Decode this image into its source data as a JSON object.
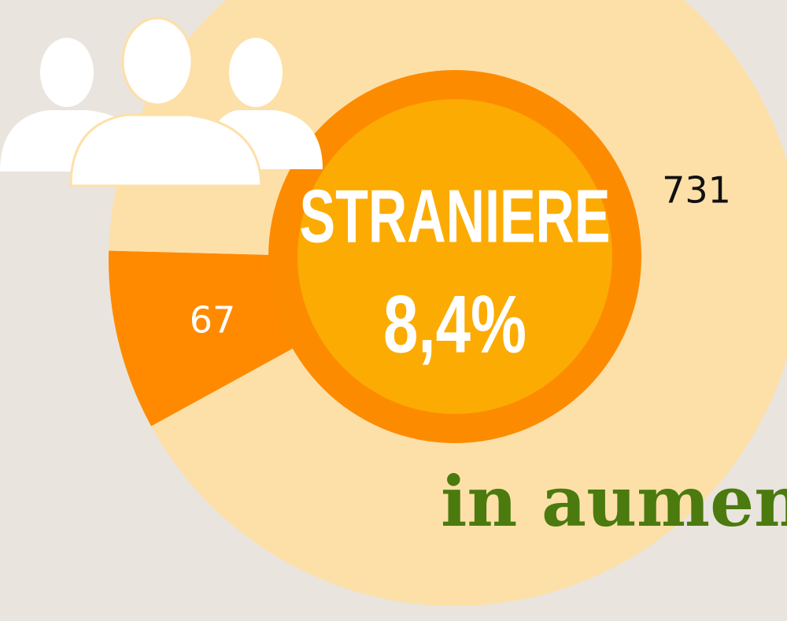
{
  "chart_data": {
    "type": "pie",
    "values": [
      67,
      731
    ],
    "colors": [
      "#ff8a00",
      "#fde0a8"
    ],
    "label_colors": [
      "#ffffff",
      "#111111"
    ],
    "center_title": "STRANIERE",
    "center_value": "8,4%",
    "annotation": "in aumento"
  }
}
